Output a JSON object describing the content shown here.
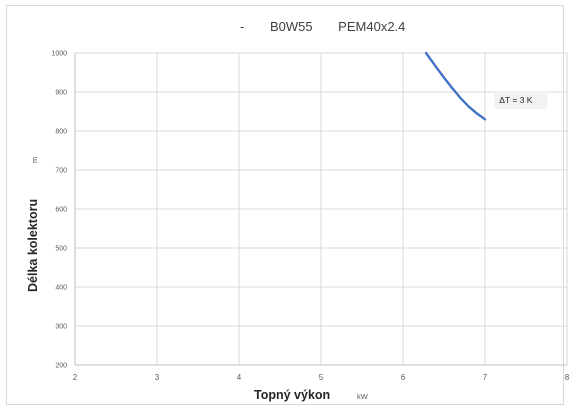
{
  "chart_data": {
    "type": "line",
    "title": "- B0W55 PEM40x2.4",
    "xlabel": "Topný výkon",
    "xunit": "kW",
    "ylabel": "Délka kolektoru",
    "yunit": "m",
    "xlim": [
      2,
      8
    ],
    "ylim": [
      200,
      1000
    ],
    "xticks": [
      "2",
      "3",
      "4",
      "5",
      "6",
      "7",
      "8"
    ],
    "yticks": [
      "200",
      "300",
      "400",
      "500",
      "600",
      "700",
      "800",
      "900",
      "1000"
    ],
    "grid": true,
    "series": [
      {
        "color": "#4472c4",
        "x": [
          6.28,
          6.4,
          6.5,
          6.6,
          6.7,
          6.8,
          6.9,
          7.0
        ],
        "y": [
          1000,
          965,
          937,
          910,
          885,
          863,
          845,
          830
        ]
      }
    ],
    "annotations": [
      {
        "text": "ΔT = 3 K",
        "x": 7.15,
        "y": 880
      }
    ],
    "colors": {
      "grid": "#d9d9d9",
      "axis": "#bfbfbf",
      "line": "#4472c4",
      "annotation_bg": "#f2f2f2"
    }
  }
}
